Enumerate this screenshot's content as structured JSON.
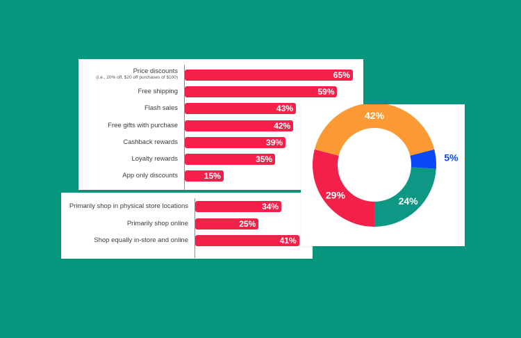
{
  "colors": {
    "background": "#07977e",
    "bar": "#f3214a",
    "donut_orange": "#fb9a34",
    "donut_red": "#f3214a",
    "donut_teal": "#0c9884",
    "donut_blue": "#0b47f5"
  },
  "chart_data": [
    {
      "type": "bar",
      "orientation": "horizontal",
      "categories": [
        "Price discounts",
        "Free shipping",
        "Flash sales",
        "Free gifts with purchase",
        "Cashback rewards",
        "Loyalty rewards",
        "App only discounts"
      ],
      "category_notes": [
        "(i.e., 20% off, $20 off purchases of $100)",
        "",
        "",
        "",
        "",
        "",
        ""
      ],
      "values": [
        65,
        59,
        43,
        42,
        39,
        35,
        15
      ],
      "value_labels": [
        "65%",
        "59%",
        "43%",
        "42%",
        "39%",
        "35%",
        "15%"
      ],
      "xlim": [
        0,
        100
      ],
      "grid": false
    },
    {
      "type": "bar",
      "orientation": "horizontal",
      "categories": [
        "Primarily shop in physical store locations",
        "Primarily shop online",
        "Shop equally in-store and online"
      ],
      "values": [
        34,
        25,
        41
      ],
      "value_labels": [
        "34%",
        "25%",
        "41%"
      ],
      "xlim": [
        0,
        100
      ],
      "grid": false
    },
    {
      "type": "pie",
      "donut": true,
      "values": [
        42,
        5,
        24,
        29
      ],
      "value_labels": [
        "42%",
        "5%",
        "24%",
        "29%"
      ],
      "slice_colors": [
        "#fb9a34",
        "#0b47f5",
        "#0c9884",
        "#f3214a"
      ]
    }
  ]
}
